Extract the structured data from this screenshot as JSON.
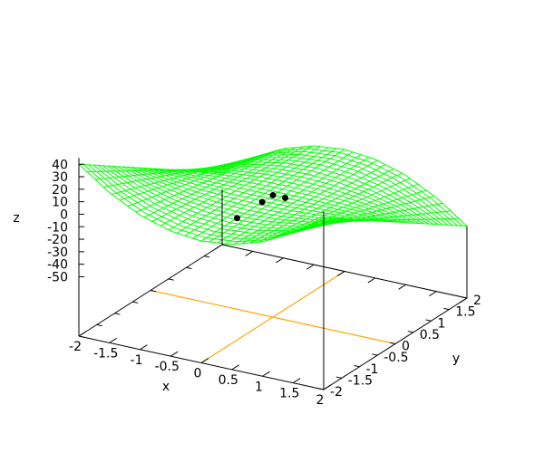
{
  "chart_data": {
    "type": "surface",
    "xlabel": "x",
    "ylabel": "y",
    "zlabel": "z",
    "xlim": [
      -2,
      2
    ],
    "ylim": [
      -2,
      2
    ],
    "zlim": [
      -50,
      45
    ],
    "x_ticks": [
      "-2",
      "-1.5",
      "-1",
      "-0.5",
      "0",
      "0.5",
      "1",
      "1.5",
      "2"
    ],
    "y_ticks": [
      "-2",
      "-1.5",
      "-1",
      "-0.5",
      "0",
      "0.5",
      "1",
      "1.5",
      "2"
    ],
    "z_ticks": [
      "40",
      "30",
      "20",
      "10",
      "0",
      "-10",
      "-20",
      "-30",
      "-40",
      "-50"
    ],
    "surface": {
      "color": "#00ff00",
      "x": [
        -2,
        -1.5,
        -1,
        -0.5,
        0,
        0.5,
        1,
        1.5,
        2
      ],
      "y": [
        -2,
        -1.5,
        -1,
        -0.5,
        0,
        0.5,
        1,
        1.5,
        2
      ],
      "z": [
        [
          40,
          22.5,
          10,
          2.5,
          0,
          2.5,
          10,
          22.5,
          40
        ],
        [
          30,
          16.9,
          7.5,
          1.9,
          0,
          1.9,
          7.5,
          16.9,
          30
        ],
        [
          20,
          11.3,
          5,
          1.3,
          0,
          1.3,
          5,
          11.3,
          20
        ],
        [
          10,
          5.6,
          2.5,
          0.6,
          0,
          0.6,
          2.5,
          5.6,
          10
        ],
        [
          0,
          0,
          0,
          0,
          0,
          0,
          0,
          0,
          0
        ],
        [
          -10,
          -5.6,
          -2.5,
          -0.6,
          0,
          -0.6,
          -2.5,
          -5.6,
          -10
        ],
        [
          -20,
          -11.3,
          -5,
          -1.3,
          0,
          -1.3,
          -5,
          -11.3,
          -20
        ],
        [
          -30,
          -16.9,
          -7.5,
          -1.9,
          0,
          -1.9,
          -7.5,
          -16.9,
          -30
        ],
        [
          -40,
          -22.5,
          -10,
          -2.5,
          0,
          -2.5,
          -10,
          -22.5,
          -40
        ]
      ]
    },
    "points": {
      "color": "#000000",
      "values": [
        {
          "x": 0,
          "y": -1,
          "z": 0
        },
        {
          "x": 0,
          "y": -0.3,
          "z": 0
        },
        {
          "x": 0,
          "y": 0,
          "z": 0
        },
        {
          "x": 0.2,
          "y": 0,
          "z": 0
        }
      ]
    },
    "base_lines": {
      "color": "#ffa500",
      "lines": [
        {
          "axis": "x",
          "value": 0
        },
        {
          "axis": "y",
          "value": 0
        }
      ]
    },
    "grid": false,
    "legend": "none"
  }
}
